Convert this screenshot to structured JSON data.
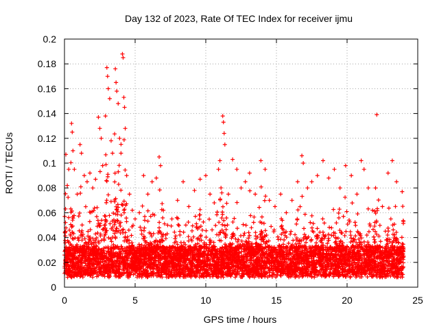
{
  "chart_data": {
    "type": "scatter",
    "title": "Day 132 of 2023, Rate Of TEC Index for receiver ijmu",
    "xlabel": "GPS time / hours",
    "ylabel": "ROTI / TECUs",
    "xlim": [
      0,
      25
    ],
    "ylim": [
      0,
      0.2
    ],
    "x_ticks": [
      "0",
      "5",
      "10",
      "15",
      "20",
      "25"
    ],
    "y_ticks": [
      "0",
      "0.02",
      "0.04",
      "0.06",
      "0.08",
      "0.1",
      "0.12",
      "0.14",
      "0.16",
      "0.18",
      "0.2"
    ],
    "grid": true,
    "marker": "+",
    "color": "#ff0000",
    "series": [
      {
        "points": [
          [
            0.1,
            0.107
          ],
          [
            0.2,
            0.082
          ],
          [
            0.3,
            0.095
          ],
          [
            0.5,
            0.132
          ],
          [
            0.55,
            0.125
          ],
          [
            0.6,
            0.11
          ],
          [
            0.7,
            0.095
          ],
          [
            0.9,
            0.075
          ],
          [
            1.1,
            0.115
          ],
          [
            1.2,
            0.108
          ],
          [
            1.4,
            0.09
          ],
          [
            1.6,
            0.085
          ],
          [
            1.8,
            0.092
          ],
          [
            2.0,
            0.08
          ],
          [
            2.2,
            0.087
          ],
          [
            2.4,
            0.137
          ],
          [
            2.5,
            0.128
          ],
          [
            2.6,
            0.12
          ],
          [
            2.7,
            0.098
          ],
          [
            2.9,
            0.138
          ],
          [
            3.0,
            0.177
          ],
          [
            3.05,
            0.17
          ],
          [
            3.1,
            0.16
          ],
          [
            3.2,
            0.152
          ],
          [
            3.3,
            0.118
          ],
          [
            3.4,
            0.108
          ],
          [
            3.6,
            0.176
          ],
          [
            3.65,
            0.165
          ],
          [
            3.7,
            0.158
          ],
          [
            3.8,
            0.148
          ],
          [
            3.9,
            0.12
          ],
          [
            4.0,
            0.108
          ],
          [
            4.1,
            0.188
          ],
          [
            4.15,
            0.185
          ],
          [
            4.2,
            0.153
          ],
          [
            4.25,
            0.145
          ],
          [
            4.3,
            0.128
          ],
          [
            4.4,
            0.09
          ],
          [
            4.6,
            0.075
          ],
          [
            4.8,
            0.062
          ],
          [
            5.0,
            0.055
          ],
          [
            5.3,
            0.06
          ],
          [
            5.6,
            0.09
          ],
          [
            5.9,
            0.075
          ],
          [
            6.2,
            0.085
          ],
          [
            6.5,
            0.088
          ],
          [
            6.7,
            0.105
          ],
          [
            6.8,
            0.098
          ],
          [
            7.0,
            0.062
          ],
          [
            7.3,
            0.05
          ],
          [
            7.6,
            0.055
          ],
          [
            8.0,
            0.07
          ],
          [
            8.4,
            0.085
          ],
          [
            8.8,
            0.065
          ],
          [
            9.2,
            0.078
          ],
          [
            9.6,
            0.087
          ],
          [
            10.0,
            0.09
          ],
          [
            10.3,
            0.075
          ],
          [
            10.6,
            0.068
          ],
          [
            10.9,
            0.095
          ],
          [
            11.0,
            0.102
          ],
          [
            11.2,
            0.138
          ],
          [
            11.25,
            0.133
          ],
          [
            11.3,
            0.124
          ],
          [
            11.35,
            0.115
          ],
          [
            11.6,
            0.075
          ],
          [
            11.9,
            0.103
          ],
          [
            12.2,
            0.095
          ],
          [
            12.5,
            0.08
          ],
          [
            12.8,
            0.085
          ],
          [
            13.1,
            0.092
          ],
          [
            13.5,
            0.075
          ],
          [
            13.9,
            0.102
          ],
          [
            14.2,
            0.095
          ],
          [
            14.5,
            0.07
          ],
          [
            14.9,
            0.065
          ],
          [
            15.3,
            0.075
          ],
          [
            15.7,
            0.06
          ],
          [
            16.1,
            0.07
          ],
          [
            16.5,
            0.085
          ],
          [
            16.8,
            0.106
          ],
          [
            16.9,
            0.1
          ],
          [
            17.2,
            0.08
          ],
          [
            17.5,
            0.085
          ],
          [
            17.9,
            0.09
          ],
          [
            18.3,
            0.102
          ],
          [
            18.7,
            0.088
          ],
          [
            19.1,
            0.095
          ],
          [
            19.5,
            0.08
          ],
          [
            19.9,
            0.098
          ],
          [
            20.3,
            0.09
          ],
          [
            20.7,
            0.075
          ],
          [
            21.0,
            0.102
          ],
          [
            21.2,
            0.095
          ],
          [
            21.5,
            0.08
          ],
          [
            21.8,
            0.062
          ],
          [
            22.1,
            0.139
          ],
          [
            22.5,
            0.065
          ],
          [
            22.9,
            0.092
          ],
          [
            23.2,
            0.102
          ],
          [
            23.5,
            0.085
          ],
          [
            23.9,
            0.077
          ]
        ]
      }
    ]
  }
}
